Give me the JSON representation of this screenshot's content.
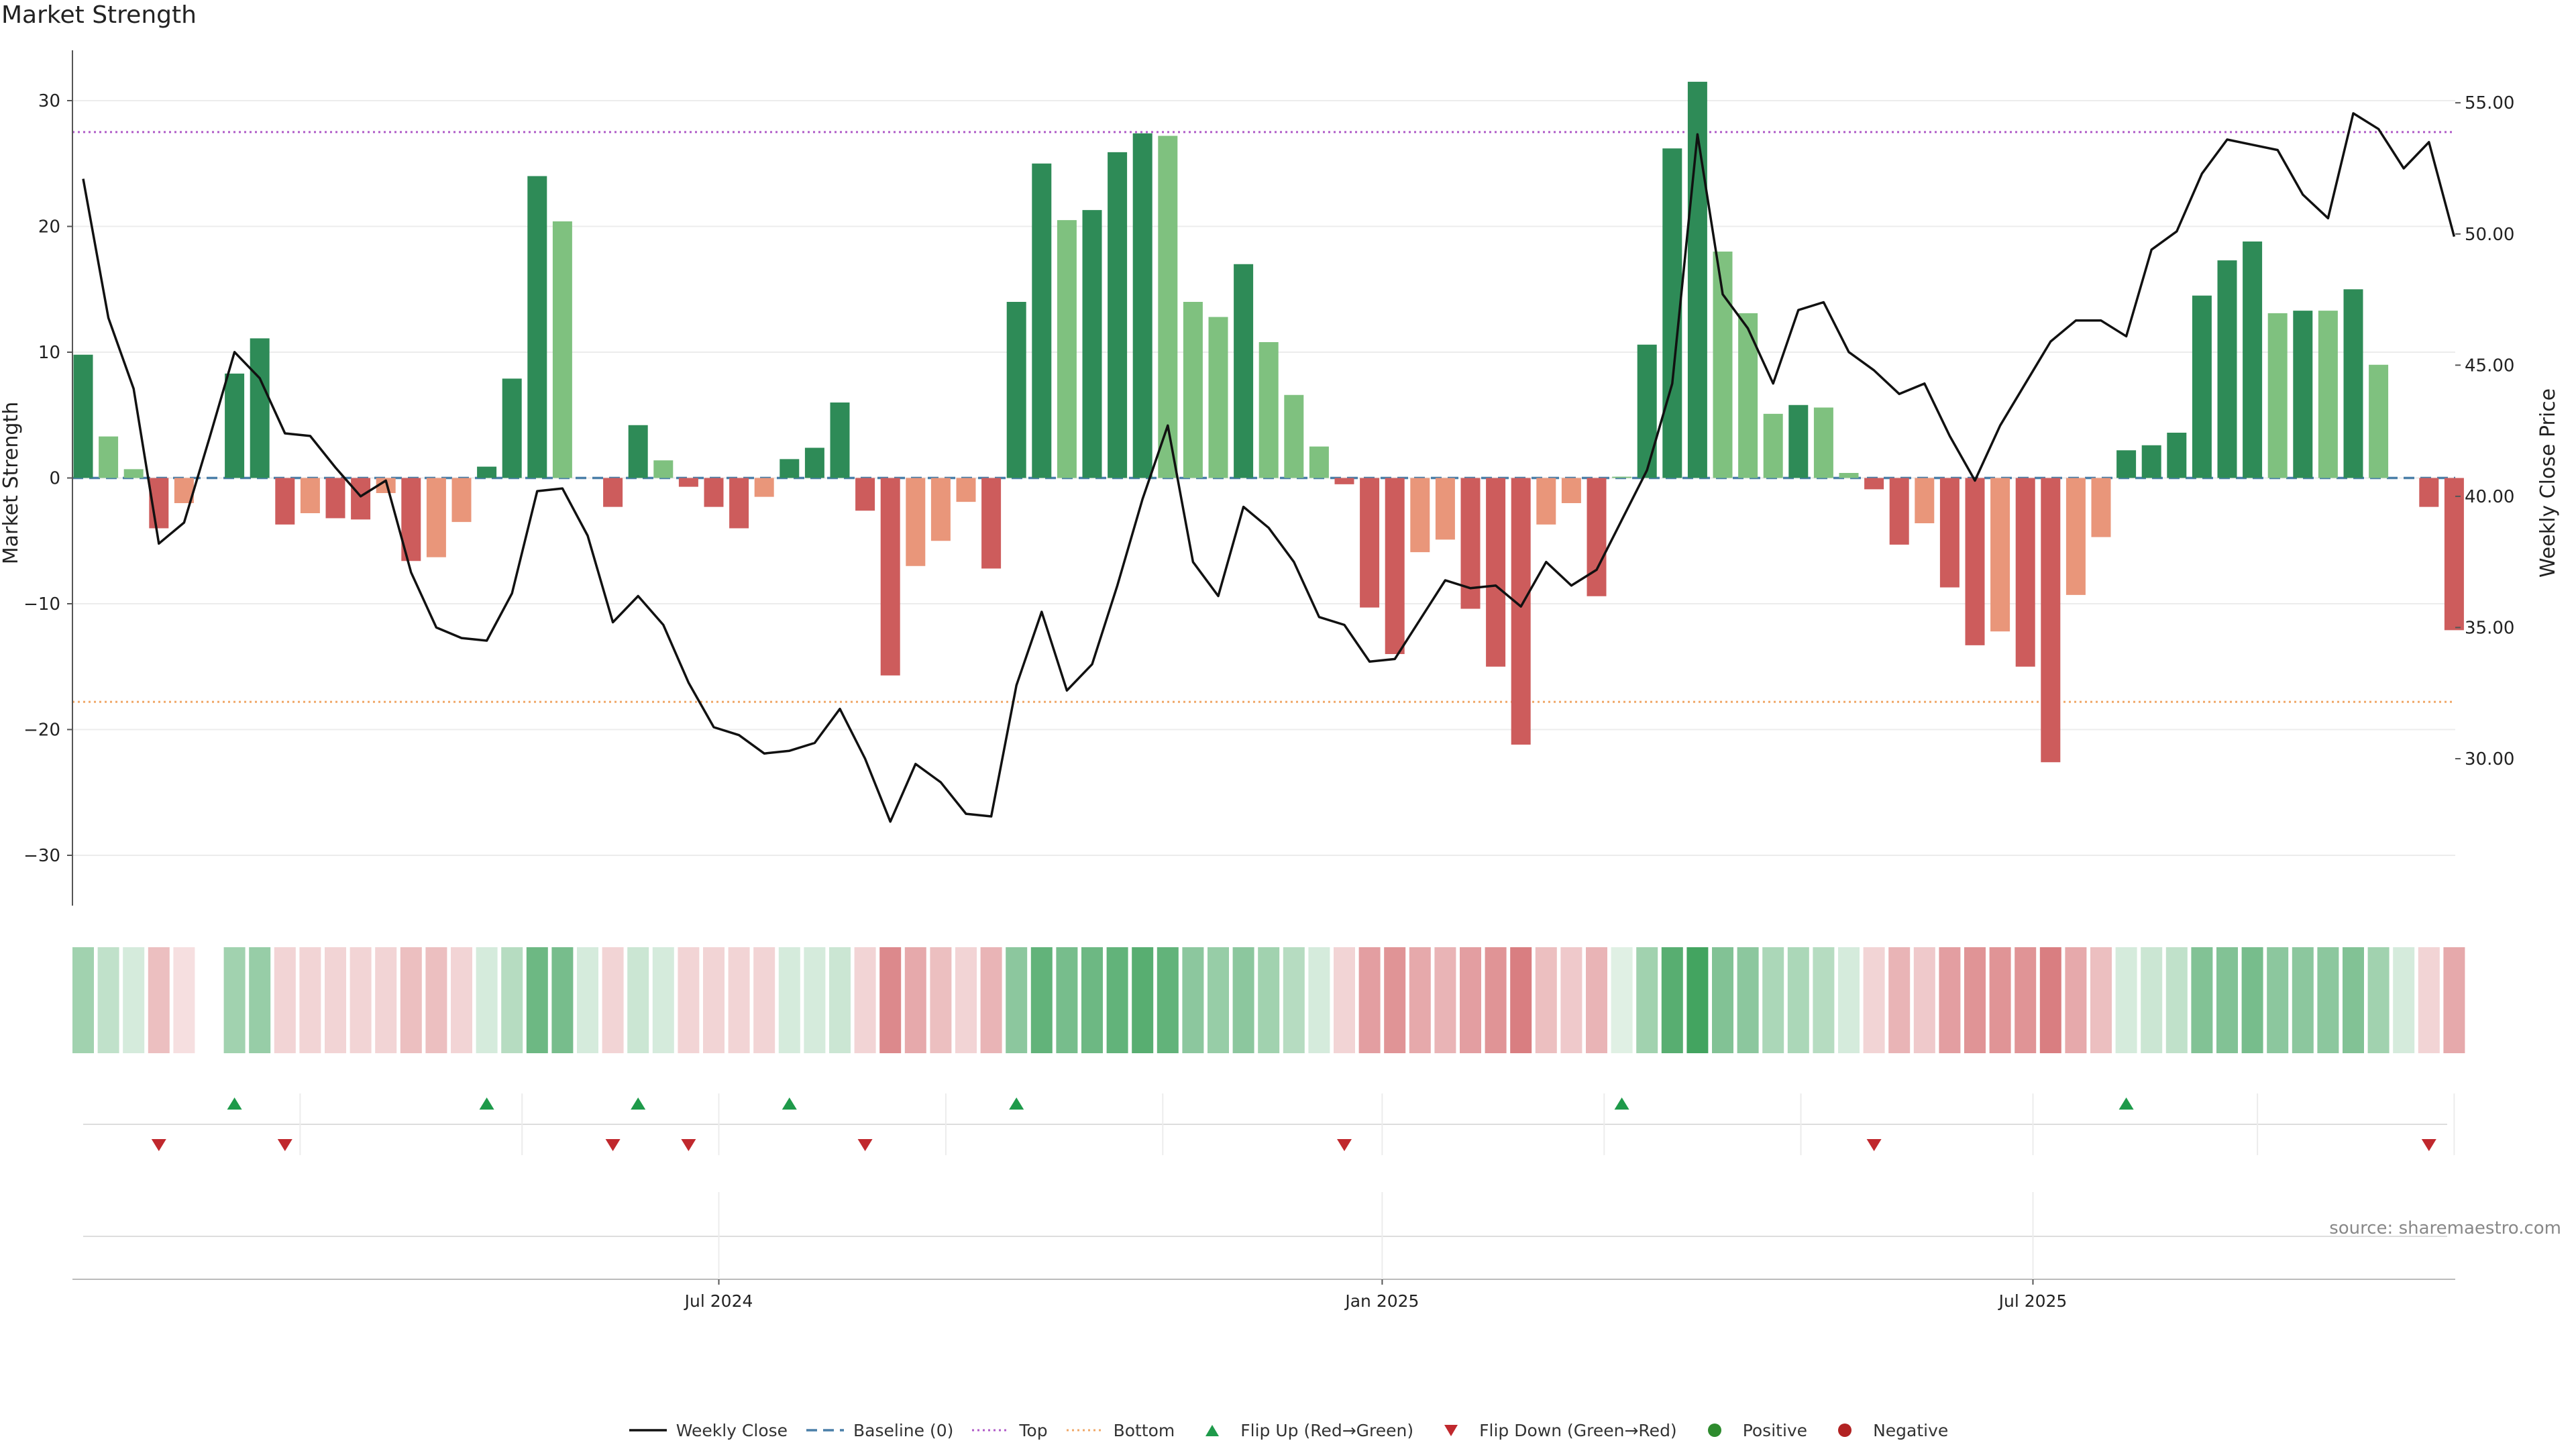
{
  "title": "Market Strength",
  "source": "source: sharemaestro.com",
  "colors": {
    "pos_strong": "#2e8b57",
    "pos_light": "#7fc17f",
    "neg_strong": "#cd5c5c",
    "neg_light": "#e9967a",
    "close_line": "#111111",
    "baseline": "#4a7fa8",
    "top": "#b05cc8",
    "bottom": "#f0a868",
    "flip_up": "#1e9a4a",
    "flip_down": "#c0282d",
    "heat_pos": "#2e9a4e",
    "heat_neg": "#c0282d"
  },
  "legend": [
    {
      "label": "Weekly Close",
      "kind": "line",
      "color": "#111111"
    },
    {
      "label": "Baseline (0)",
      "kind": "dash",
      "color": "#4a7fa8"
    },
    {
      "label": "Top",
      "kind": "dot",
      "color": "#b05cc8"
    },
    {
      "label": "Bottom",
      "kind": "dot",
      "color": "#f0a868"
    },
    {
      "label": "Flip Up (Red→Green)",
      "kind": "tri-up",
      "color": "#1e9a4a"
    },
    {
      "label": "Flip Down (Green→Red)",
      "kind": "tri-down",
      "color": "#c0282d"
    },
    {
      "label": "Positive",
      "kind": "circle",
      "color": "#2e8b2e"
    },
    {
      "label": "Negative",
      "kind": "circle",
      "color": "#b22222"
    }
  ],
  "chart_data": {
    "type": "bar",
    "title": "Market Strength",
    "ylabel": "Market Strength",
    "y2label": "Weekly Close Price",
    "ylim": [
      -34,
      34
    ],
    "y2lim": [
      24.4,
      57.0
    ],
    "yticks": [
      30,
      20,
      10,
      0,
      -10,
      -20,
      -30
    ],
    "ytick_labels": [
      "30",
      "20",
      "10",
      "0",
      "−10",
      "−20",
      "−30"
    ],
    "y2ticks": [
      55,
      50,
      45,
      40,
      35,
      30
    ],
    "y2tick_labels": [
      "55.00",
      "50.00",
      "45.00",
      "40.00",
      "35.00",
      "30.00"
    ],
    "xticks": [
      {
        "label": "Jul 2024",
        "index": 25.2
      },
      {
        "label": "Jan 2025",
        "index": 51.5
      },
      {
        "label": "Jul 2025",
        "index": 77.3
      }
    ],
    "top_level": 27.5,
    "bottom_level": -17.8,
    "baseline": 0,
    "grid": true,
    "legend_position": "bottom-center",
    "bars": [
      9.8,
      3.3,
      0.7,
      -4.0,
      -2.0,
      null,
      8.3,
      11.1,
      -3.7,
      -2.8,
      -3.2,
      -3.3,
      -1.2,
      -6.6,
      -6.3,
      -3.5,
      0.9,
      7.9,
      24.0,
      20.4,
      null,
      -2.3,
      4.2,
      1.4,
      -0.7,
      -2.3,
      -4.0,
      -1.5,
      1.5,
      2.4,
      6.0,
      -2.6,
      -15.7,
      -7.0,
      -5.0,
      -1.9,
      -7.2,
      14.0,
      25.0,
      20.5,
      21.3,
      25.9,
      27.4,
      27.2,
      14.0,
      12.8,
      17.0,
      10.8,
      6.6,
      2.5,
      -0.5,
      -10.3,
      -14.0,
      -5.9,
      -4.9,
      -10.4,
      -15.0,
      -21.2,
      -3.7,
      -2.0,
      -9.4,
      0.1,
      10.6,
      26.2,
      31.5,
      18.0,
      13.1,
      5.1,
      5.8,
      5.6,
      0.4,
      -0.9,
      -5.3,
      -3.6,
      -8.7,
      -13.3,
      -12.2,
      -15.0,
      -22.6,
      -9.3,
      -4.7,
      2.2,
      2.6,
      3.6,
      14.5,
      17.3,
      18.8,
      13.1,
      13.3,
      13.3,
      15.0,
      9.0,
      null,
      -2.3,
      -12.1
    ],
    "bar_shade": [
      "S",
      "L",
      "L",
      "S",
      "L",
      null,
      "S",
      "S",
      "S",
      "L",
      "S",
      "S",
      "L",
      "S",
      "L",
      "L",
      "S",
      "S",
      "S",
      "L",
      null,
      "S",
      "S",
      "L",
      "S",
      "S",
      "S",
      "L",
      "S",
      "S",
      "S",
      "S",
      "S",
      "L",
      "L",
      "L",
      "S",
      "S",
      "S",
      "L",
      "S",
      "S",
      "S",
      "L",
      "L",
      "L",
      "S",
      "L",
      "L",
      "L",
      "S",
      "S",
      "S",
      "L",
      "L",
      "S",
      "S",
      "S",
      "L",
      "L",
      "S",
      "L",
      "S",
      "S",
      "S",
      "L",
      "L",
      "L",
      "S",
      "L",
      "L",
      "S",
      "S",
      "L",
      "S",
      "S",
      "L",
      "S",
      "S",
      "L",
      "L",
      "S",
      "S",
      "S",
      "S",
      "S",
      "S",
      "L",
      "S",
      "L",
      "S",
      "L",
      null,
      "S",
      "S"
    ],
    "weekly_close": [
      52.1,
      46.8,
      44.1,
      38.2,
      39.0,
      42.2,
      45.5,
      44.5,
      42.4,
      42.3,
      41.1,
      40.0,
      40.6,
      37.1,
      35.0,
      34.6,
      34.5,
      36.3,
      40.2,
      40.3,
      38.5,
      35.2,
      36.2,
      35.1,
      32.9,
      31.2,
      30.9,
      30.2,
      30.3,
      30.6,
      31.9,
      30.0,
      27.6,
      29.8,
      29.1,
      27.9,
      27.8,
      32.8,
      35.6,
      32.6,
      33.6,
      36.6,
      39.9,
      42.7,
      37.5,
      36.2,
      39.6,
      38.8,
      37.5,
      35.4,
      35.1,
      33.7,
      33.8,
      35.3,
      36.8,
      36.5,
      36.6,
      35.8,
      37.5,
      36.6,
      37.2,
      39.1,
      41.0,
      44.3,
      53.8,
      47.7,
      46.4,
      44.3,
      47.1,
      47.4,
      45.5,
      44.8,
      43.9,
      44.3,
      42.3,
      40.6,
      42.7,
      44.3,
      45.9,
      46.7,
      46.7,
      46.1,
      49.4,
      50.1,
      52.3,
      53.6,
      53.4,
      53.2,
      51.5,
      50.6,
      54.6,
      54.0,
      52.5,
      53.5,
      49.9
    ],
    "heatmap_intensity": [
      0.45,
      0.3,
      0.2,
      -0.3,
      -0.15,
      null,
      0.45,
      0.5,
      -0.2,
      -0.2,
      -0.2,
      -0.2,
      -0.2,
      -0.3,
      -0.3,
      -0.2,
      0.2,
      0.35,
      0.7,
      0.65,
      0.2,
      -0.2,
      0.25,
      0.2,
      -0.2,
      -0.2,
      -0.2,
      -0.2,
      0.2,
      0.2,
      0.25,
      -0.2,
      -0.55,
      -0.4,
      -0.3,
      -0.2,
      -0.35,
      0.55,
      0.75,
      0.65,
      0.7,
      0.75,
      0.8,
      0.75,
      0.55,
      0.5,
      0.55,
      0.45,
      0.35,
      0.2,
      -0.2,
      -0.45,
      -0.5,
      -0.4,
      -0.35,
      -0.45,
      -0.5,
      -0.6,
      -0.3,
      -0.25,
      -0.35,
      0.15,
      0.45,
      0.8,
      0.9,
      0.6,
      0.55,
      0.4,
      0.4,
      0.35,
      0.2,
      -0.2,
      -0.35,
      -0.25,
      -0.45,
      -0.5,
      -0.5,
      -0.5,
      -0.6,
      -0.4,
      -0.3,
      0.2,
      0.25,
      0.3,
      0.6,
      0.6,
      0.65,
      0.55,
      0.55,
      0.55,
      0.6,
      0.45,
      0.2,
      -0.2,
      -0.4
    ],
    "flip_up_index": [
      6,
      16,
      22,
      28,
      37,
      61,
      81
    ],
    "flip_down_index": [
      3,
      8,
      21,
      24,
      31,
      50,
      71,
      93
    ]
  }
}
